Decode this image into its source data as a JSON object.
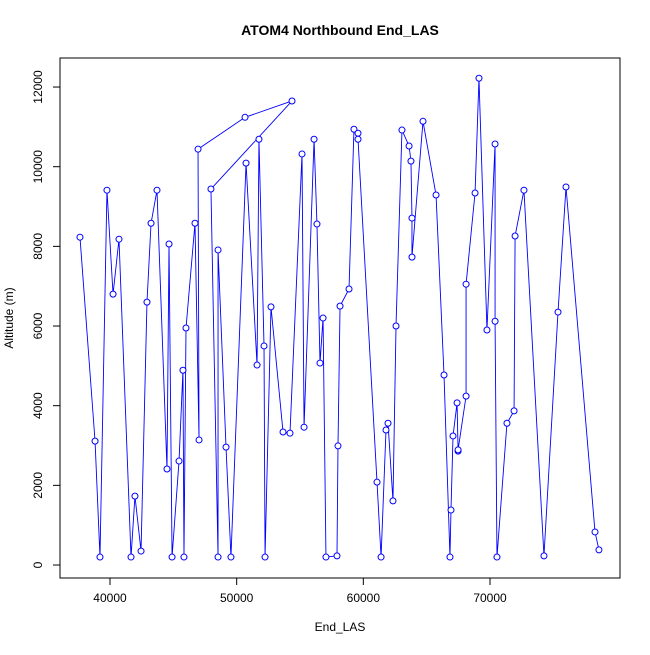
{
  "chart_data": {
    "type": "line",
    "title": "ATOM4 Northbound End_LAS",
    "x_label": "End_LAS",
    "y_label": "Altitude (m)",
    "x": [
      37630,
      38820,
      39210,
      39760,
      40240,
      40710,
      41660,
      41970,
      42450,
      42920,
      43240,
      43710,
      44500,
      44660,
      44900,
      45450,
      45760,
      45840,
      46000,
      46710,
      47030,
      46950,
      50660,
      54370,
      47970,
      48530,
      48530,
      49160,
      49550,
      50740,
      51610,
      51760,
      52160,
      52240,
      52710,
      53660,
      54210,
      55160,
      55320,
      56110,
      56340,
      56580,
      56820,
      57050,
      57920,
      58000,
      58160,
      58870,
      59260,
      59580,
      59580,
      61080,
      61400,
      61790,
      61950,
      62340,
      62580,
      63050,
      63610,
      63760,
      63840,
      63840,
      64710,
      65740,
      66370,
      66840,
      66920,
      67080,
      67400,
      67480,
      67480,
      68110,
      68110,
      68820,
      69130,
      69760,
      70400,
      70400,
      70550,
      71340,
      71900,
      71980,
      72680,
      74260,
      75370,
      76000,
      78290,
      78600
    ],
    "values": [
      8230,
      3110,
      200,
      9410,
      6800,
      8180,
      200,
      1730,
      350,
      6600,
      8580,
      9410,
      2410,
      8060,
      200,
      2610,
      4890,
      200,
      5950,
      8580,
      3140,
      10440,
      11240,
      11650,
      9440,
      200,
      7910,
      2960,
      200,
      10090,
      5020,
      10690,
      5500,
      200,
      6480,
      3340,
      3310,
      10320,
      3460,
      10690,
      8560,
      5070,
      6200,
      200,
      230,
      2990,
      6500,
      6930,
      10940,
      10840,
      10690,
      2080,
      200,
      3390,
      3560,
      1610,
      6000,
      10920,
      10520,
      10140,
      8710,
      7730,
      11140,
      9290,
      4770,
      200,
      1380,
      3240,
      4070,
      2860,
      2890,
      4240,
      7050,
      9340,
      12220,
      5900,
      10570,
      6120,
      200,
      3560,
      3870,
      8260,
      9410,
      230,
      6350,
      9490,
      830,
      380
    ],
    "color": "#0000ff",
    "xlim": [
      36053,
      80263
    ],
    "xticks": [
      40000,
      50000,
      60000,
      70000
    ],
    "ylim": [
      -326,
      12729
    ],
    "yticks": [
      0,
      2000,
      4000,
      6000,
      8000,
      10000,
      12000
    ]
  }
}
